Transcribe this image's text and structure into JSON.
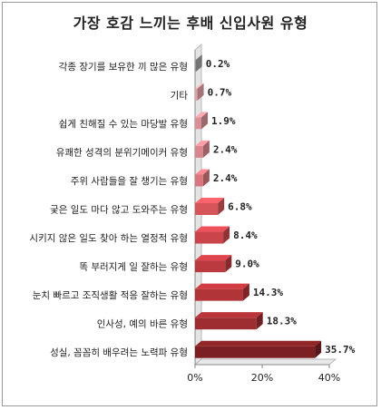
{
  "chart_data": {
    "type": "bar",
    "orientation": "horizontal",
    "title": "가장 호감 느끼는 후배 신입사원 유형",
    "categories": [
      "각종 장기를 보유한 끼 많은 유형",
      "기타",
      "쉽게 친해질 수 있는 마당발 유형",
      "유쾌한 성격의 분위기메이커 유형",
      "주위 사람들을 잘 챙기는 유형",
      "궂은 일도 마다 않고 도와주는 유형",
      "시키지 않은 일도 찾아 하는 열정적 유형",
      "똑 부러지게 일 잘하는 유형",
      "눈치 빠르고 조직생활 적응 잘하는 유형",
      "인사성, 예의 바른 유형",
      "성실, 꼼꼼히 배우려는 노력파 유형"
    ],
    "values": [
      0.2,
      0.7,
      1.9,
      2.4,
      2.4,
      6.8,
      8.4,
      9.0,
      14.3,
      18.3,
      35.7
    ],
    "value_labels": [
      "0.2%",
      "0.7%",
      "1.9%",
      "2.4%",
      "2.4%",
      "6.8%",
      "8.4%",
      "9.0%",
      "14.3%",
      "18.3%",
      "35.7%"
    ],
    "xlim": [
      0,
      40
    ],
    "xticks": [
      "0%",
      "20%",
      "40%"
    ],
    "grid": false,
    "legend": "none",
    "colors": [
      "#a3a3a3",
      "#e3a1a6",
      "#d98f98",
      "#d8868e",
      "#d7777d",
      "#d5555a",
      "#c9454b",
      "#bb3a40",
      "#b03438",
      "#9d2d31",
      "#7c1f22"
    ]
  }
}
